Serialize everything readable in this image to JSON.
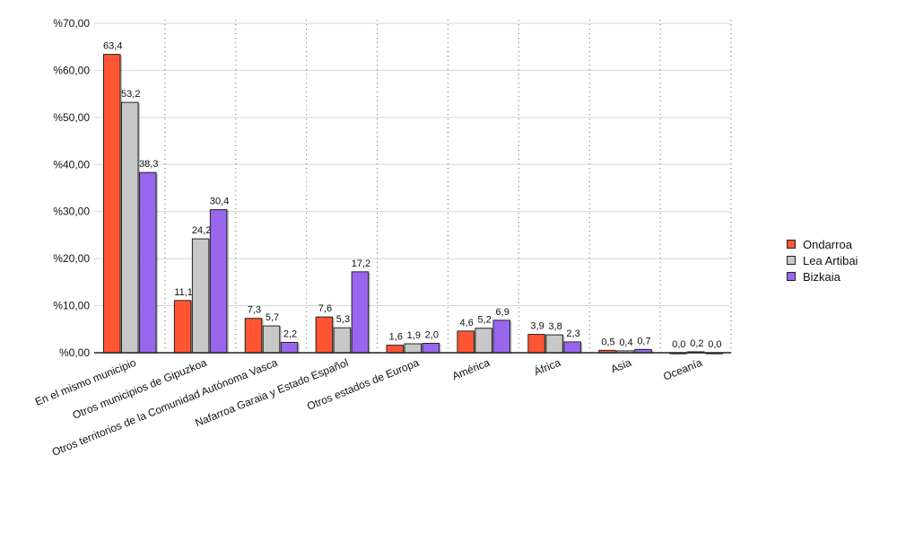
{
  "chart_data": {
    "type": "bar",
    "categories": [
      "En el mismo municipio",
      "Otros municipios de Gipuzkoa",
      "Otros territorios de la Comunidad Autónoma Vasca",
      "Nafarroa Garaia y Estado Español",
      "Otros estados de Europa",
      "América",
      "África",
      "Asia",
      "Oceanía"
    ],
    "series": [
      {
        "name": "Ondarroa",
        "color": "#ff5533",
        "values": [
          63.4,
          11.1,
          7.3,
          7.6,
          1.6,
          4.6,
          3.9,
          0.5,
          0.0
        ],
        "labels": [
          "63,4",
          "11,1",
          "7,3",
          "7,6",
          "1,6",
          "4,6",
          "3,9",
          "0,5",
          "0,0"
        ]
      },
      {
        "name": "Lea Artibai",
        "color": "#c8c8c8",
        "values": [
          53.2,
          24.2,
          5.7,
          5.3,
          1.9,
          5.2,
          3.8,
          0.4,
          0.2
        ],
        "labels": [
          "53,2",
          "24,2",
          "5,7",
          "5,3",
          "1,9",
          "5,2",
          "3,8",
          "0,4",
          "0,2"
        ]
      },
      {
        "name": "Bizkaia",
        "color": "#9966ee",
        "values": [
          38.3,
          30.4,
          2.2,
          17.2,
          2.0,
          6.9,
          2.3,
          0.7,
          0.0
        ],
        "labels": [
          "38,3",
          "30,4",
          "2,2",
          "17,2",
          "2,0",
          "6,9",
          "2,3",
          "0,7",
          "0,0"
        ]
      }
    ],
    "yticks": [
      "%0,00",
      "%10,00",
      "%20,00",
      "%30,00",
      "%40,00",
      "%50,00",
      "%60,00",
      "%70,00"
    ],
    "ylim": [
      0,
      70
    ],
    "grid": true,
    "legend_position": "right"
  }
}
